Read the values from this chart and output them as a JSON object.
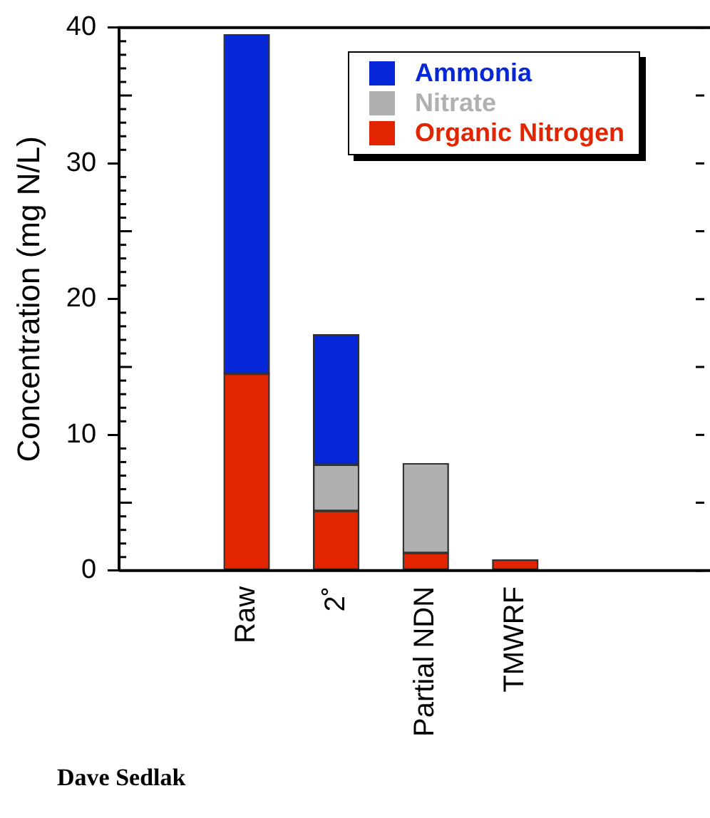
{
  "chart_data": {
    "type": "bar",
    "stacked": true,
    "ylabel": "Concentration (mg N/L)",
    "categories": [
      "Raw",
      "2˚",
      "Partial NDN",
      "TMWRF"
    ],
    "series": [
      {
        "name": "Organic Nitrogen",
        "color": "#e32400",
        "values": [
          14.5,
          4.4,
          1.3,
          0.8
        ]
      },
      {
        "name": "Nitrate",
        "color": "#b0b0b0",
        "values": [
          0,
          3.4,
          6.6,
          0
        ]
      },
      {
        "name": "Ammonia",
        "color": "#0527d8",
        "values": [
          25,
          9.6,
          0,
          0
        ]
      }
    ],
    "ylim": [
      0,
      40
    ],
    "yticks": [
      0,
      10,
      20,
      30,
      40
    ],
    "legend": "top right",
    "grid": false,
    "annotations": [
      "Dave Sedlak"
    ]
  }
}
